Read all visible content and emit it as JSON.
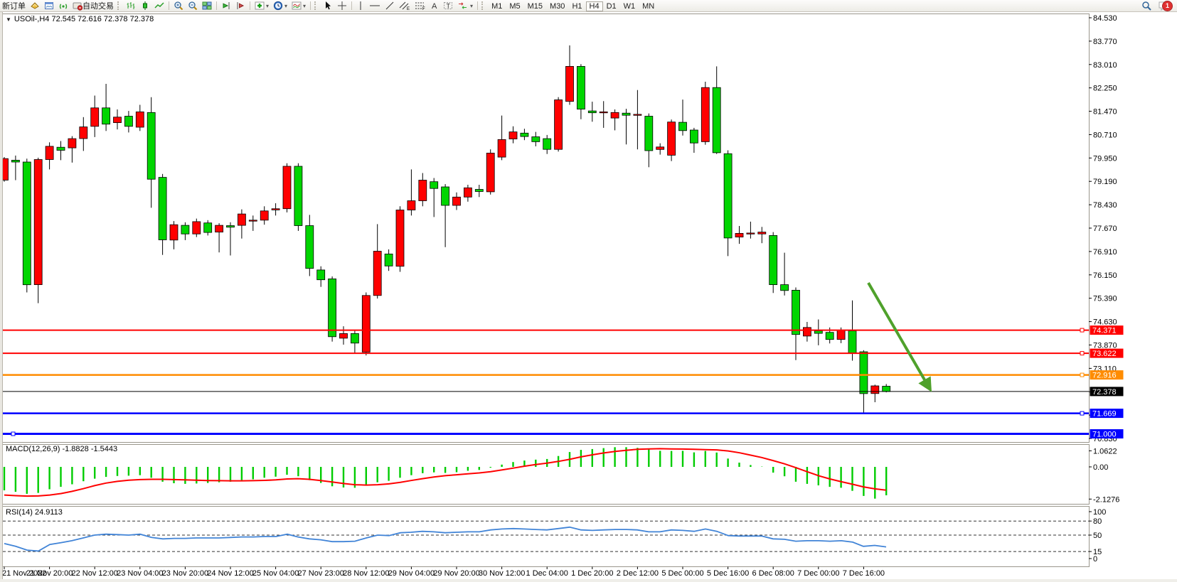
{
  "toolbar": {
    "new_order_label": "新订单",
    "autotrade_label": "自动交易",
    "timeframes": [
      "M1",
      "M5",
      "M15",
      "M30",
      "H1",
      "H4",
      "D1",
      "W1",
      "MN"
    ],
    "active_timeframe": "H4",
    "notification_count": "1"
  },
  "chart": {
    "title": "USOil-,H4 72.545 72.616 72.378 72.378",
    "symbol": "USOil-",
    "period": "H4",
    "open": "72.545",
    "high": "72.616",
    "low": "72.378",
    "close": "72.378"
  },
  "indicators": {
    "macd_label": "MACD(12,26,9) -1.8828 -1.5443",
    "rsi_label": "RSI(14) 24.9113"
  },
  "chart_data": {
    "type": "candlestick",
    "title": "USOil- H4",
    "legend_position": "none",
    "grid": false,
    "price_axis": {
      "ticks": [
        "84.530",
        "83.770",
        "83.010",
        "82.250",
        "81.470",
        "80.710",
        "79.950",
        "79.190",
        "78.430",
        "77.670",
        "76.910",
        "76.150",
        "75.390",
        "74.630",
        "73.870",
        "73.110",
        "72.350",
        "71.590",
        "70.830"
      ],
      "top_tick_value": 84.53,
      "tick_step": 0.76
    },
    "time_labels": [
      "21 Nov 2022",
      "21 Nov 20:00",
      "22 Nov 12:00",
      "23 Nov 04:00",
      "23 Nov 20:00",
      "24 Nov 12:00",
      "25 Nov 04:00",
      "27 Nov 23:00",
      "28 Nov 12:00",
      "29 Nov 04:00",
      "29 Nov 20:00",
      "30 Nov 12:00",
      "1 Dec 04:00",
      "1 Dec 20:00",
      "2 Dec 12:00",
      "5 Dec 00:00",
      "5 Dec 16:00",
      "6 Dec 08:00",
      "7 Dec 00:00",
      "7 Dec 16:00"
    ],
    "time_label_indices": [
      0,
      4,
      8,
      12,
      16,
      20,
      24,
      28,
      32,
      36,
      40,
      44,
      48,
      52,
      56,
      60,
      64,
      68,
      72,
      76
    ],
    "candles": [
      [
        79.25,
        80.0,
        79.2,
        79.95
      ],
      [
        79.9,
        80.05,
        79.25,
        79.84
      ],
      [
        79.84,
        79.95,
        75.6,
        75.85
      ],
      [
        75.85,
        79.98,
        75.25,
        79.92
      ],
      [
        79.92,
        80.48,
        79.6,
        80.35
      ],
      [
        80.32,
        80.52,
        79.9,
        80.22
      ],
      [
        80.3,
        80.68,
        79.82,
        80.6
      ],
      [
        80.6,
        81.3,
        80.2,
        80.98
      ],
      [
        81.0,
        82.0,
        80.65,
        81.6
      ],
      [
        81.6,
        82.38,
        80.85,
        81.07
      ],
      [
        81.12,
        81.55,
        80.9,
        81.3
      ],
      [
        81.33,
        81.5,
        80.8,
        81.0
      ],
      [
        80.97,
        81.7,
        80.85,
        81.47
      ],
      [
        81.45,
        81.95,
        78.35,
        79.28
      ],
      [
        79.34,
        79.45,
        76.82,
        77.31
      ],
      [
        77.3,
        77.92,
        77.0,
        77.8
      ],
      [
        77.78,
        77.88,
        77.3,
        77.5
      ],
      [
        77.5,
        78.0,
        77.4,
        77.9
      ],
      [
        77.86,
        77.95,
        77.45,
        77.55
      ],
      [
        77.56,
        77.85,
        76.9,
        77.78
      ],
      [
        77.77,
        77.88,
        76.8,
        77.72
      ],
      [
        77.78,
        78.3,
        77.35,
        78.15
      ],
      [
        77.92,
        78.1,
        77.6,
        77.95
      ],
      [
        77.95,
        78.4,
        77.8,
        78.25
      ],
      [
        78.28,
        78.5,
        78.1,
        78.32
      ],
      [
        78.32,
        79.8,
        78.2,
        79.7
      ],
      [
        79.7,
        79.8,
        77.6,
        77.77
      ],
      [
        77.77,
        78.12,
        76.13,
        76.38
      ],
      [
        76.33,
        76.45,
        75.78,
        76.01
      ],
      [
        76.04,
        76.12,
        74.0,
        74.16
      ],
      [
        74.11,
        74.5,
        73.9,
        74.26
      ],
      [
        74.26,
        74.35,
        73.6,
        73.95
      ],
      [
        73.66,
        75.6,
        73.55,
        75.5
      ],
      [
        75.5,
        77.82,
        75.4,
        76.94
      ],
      [
        76.85,
        77.0,
        76.3,
        76.46
      ],
      [
        76.45,
        78.4,
        76.27,
        78.28
      ],
      [
        78.28,
        79.6,
        78.1,
        78.58
      ],
      [
        78.58,
        79.48,
        78.4,
        79.25
      ],
      [
        79.2,
        79.32,
        78.05,
        78.98
      ],
      [
        79.03,
        79.12,
        77.07,
        78.43
      ],
      [
        78.43,
        78.85,
        78.28,
        78.7
      ],
      [
        78.7,
        79.1,
        78.55,
        79.0
      ],
      [
        78.95,
        79.1,
        78.7,
        78.88
      ],
      [
        78.87,
        80.25,
        78.78,
        80.13
      ],
      [
        80.0,
        81.35,
        79.9,
        80.57
      ],
      [
        80.59,
        81.0,
        80.45,
        80.82
      ],
      [
        80.78,
        80.92,
        80.55,
        80.67
      ],
      [
        80.66,
        80.82,
        80.35,
        80.5
      ],
      [
        80.6,
        80.72,
        80.1,
        80.25
      ],
      [
        80.25,
        81.95,
        80.18,
        81.86
      ],
      [
        81.81,
        83.63,
        81.7,
        82.95
      ],
      [
        82.95,
        83.02,
        81.23,
        81.56
      ],
      [
        81.5,
        81.8,
        81.15,
        81.44
      ],
      [
        81.45,
        81.82,
        80.95,
        81.47
      ],
      [
        81.27,
        81.55,
        80.87,
        81.45
      ],
      [
        81.43,
        81.57,
        80.41,
        81.36
      ],
      [
        81.38,
        82.18,
        80.25,
        81.39
      ],
      [
        81.33,
        81.42,
        79.67,
        80.21
      ],
      [
        80.25,
        80.45,
        80.08,
        80.33
      ],
      [
        80.06,
        81.22,
        79.87,
        81.14
      ],
      [
        81.13,
        81.87,
        80.7,
        80.86
      ],
      [
        80.88,
        80.95,
        80.14,
        80.46
      ],
      [
        80.5,
        82.45,
        80.4,
        82.26
      ],
      [
        82.26,
        82.95,
        80.1,
        80.14
      ],
      [
        80.11,
        80.22,
        76.78,
        77.37
      ],
      [
        77.4,
        77.76,
        77.18,
        77.52
      ],
      [
        77.52,
        77.9,
        77.35,
        77.53
      ],
      [
        77.5,
        77.73,
        77.2,
        77.56
      ],
      [
        77.45,
        77.56,
        75.58,
        75.85
      ],
      [
        75.85,
        76.89,
        75.5,
        75.66
      ],
      [
        75.67,
        75.76,
        73.4,
        74.23
      ],
      [
        74.18,
        74.64,
        74.0,
        74.46
      ],
      [
        74.35,
        74.72,
        73.88,
        74.27
      ],
      [
        74.3,
        74.46,
        73.94,
        74.07
      ],
      [
        74.07,
        74.46,
        73.95,
        74.37
      ],
      [
        74.35,
        75.34,
        73.38,
        73.63
      ],
      [
        73.67,
        73.72,
        71.68,
        72.31
      ],
      [
        72.31,
        72.6,
        72.03,
        72.56
      ],
      [
        72.55,
        72.62,
        72.35,
        72.38
      ]
    ],
    "hlines": [
      {
        "price": 74.371,
        "label": "74.371",
        "color": "#FF0000",
        "width": 2,
        "handle": "right"
      },
      {
        "price": 73.622,
        "label": "73.622",
        "color": "#FF0000",
        "width": 2,
        "handle": "right"
      },
      {
        "price": 72.916,
        "label": "72.916",
        "color": "#FF8C00",
        "width": 2.5,
        "handle": "right"
      },
      {
        "price": 72.378,
        "label": "72.378",
        "color": "#000000",
        "width": 1,
        "handle": "none"
      },
      {
        "price": 71.669,
        "label": "71.669",
        "color": "#0000FF",
        "width": 2.5,
        "handle": "right"
      },
      {
        "price": 71.0,
        "label": "71.000",
        "color": "#0000FF",
        "width": 3,
        "handle": "left"
      }
    ],
    "arrow": {
      "from_index": 76.4,
      "from_price": 75.9,
      "to_index": 81.7,
      "to_price": 72.55,
      "color": "#4FA12B",
      "width": 4
    },
    "macd": {
      "histogram": [
        -1.55,
        -1.65,
        -1.78,
        -1.72,
        -1.48,
        -1.32,
        -1.15,
        -0.95,
        -0.78,
        -0.66,
        -0.6,
        -0.58,
        -0.55,
        -0.72,
        -0.98,
        -1.08,
        -1.12,
        -1.1,
        -1.06,
        -1.02,
        -0.98,
        -0.88,
        -0.82,
        -0.72,
        -0.65,
        -0.52,
        -0.62,
        -0.88,
        -1.06,
        -1.28,
        -1.36,
        -1.38,
        -1.22,
        -1.02,
        -0.92,
        -0.72,
        -0.55,
        -0.42,
        -0.36,
        -0.4,
        -0.35,
        -0.26,
        -0.2,
        -0.05,
        0.15,
        0.32,
        0.42,
        0.48,
        0.52,
        0.72,
        0.98,
        1.12,
        1.18,
        1.24,
        1.3,
        1.3,
        1.26,
        1.15,
        1.06,
        1.05,
        1.06,
        0.96,
        1.05,
        0.95,
        0.55,
        0.28,
        0.12,
        0.02,
        -0.38,
        -0.62,
        -0.98,
        -1.12,
        -1.22,
        -1.32,
        -1.38,
        -1.58,
        -1.92,
        -2.1,
        -1.88
      ],
      "signal": [
        -1.86,
        -1.9,
        -1.93,
        -1.92,
        -1.86,
        -1.76,
        -1.62,
        -1.44,
        -1.24,
        -1.07,
        -0.96,
        -0.88,
        -0.84,
        -0.82,
        -0.82,
        -0.84,
        -0.86,
        -0.88,
        -0.9,
        -0.91,
        -0.92,
        -0.92,
        -0.91,
        -0.89,
        -0.86,
        -0.8,
        -0.78,
        -0.82,
        -0.9,
        -1.0,
        -1.1,
        -1.18,
        -1.2,
        -1.18,
        -1.12,
        -1.02,
        -0.9,
        -0.78,
        -0.67,
        -0.58,
        -0.52,
        -0.46,
        -0.4,
        -0.32,
        -0.2,
        -0.08,
        0.04,
        0.15,
        0.25,
        0.36,
        0.5,
        0.66,
        0.8,
        0.92,
        1.02,
        1.1,
        1.16,
        1.19,
        1.2,
        1.19,
        1.18,
        1.16,
        1.14,
        1.12,
        1.05,
        0.93,
        0.78,
        0.62,
        0.42,
        0.2,
        -0.05,
        -0.32,
        -0.58,
        -0.8,
        -0.98,
        -1.15,
        -1.32,
        -1.45,
        -1.54
      ],
      "current_main": "-1.8828",
      "current_signal": "-1.5443",
      "scale_labels": [
        [
          "1.0622",
          1.0622
        ],
        [
          "0.00",
          0
        ],
        [
          "-2.1276",
          -2.1276
        ]
      ]
    },
    "rsi": {
      "values": [
        32,
        26,
        18,
        16,
        30,
        34,
        38,
        44,
        50,
        52,
        51,
        50,
        52,
        45,
        42,
        43,
        43,
        44,
        44,
        44,
        45,
        46,
        46,
        47,
        47,
        52,
        46,
        42,
        40,
        36,
        36,
        37,
        44,
        50,
        49,
        55,
        56,
        58,
        57,
        55,
        56,
        57,
        57,
        61,
        63,
        64,
        63,
        62,
        61,
        64,
        67,
        61,
        60,
        61,
        62,
        62,
        61,
        57,
        57,
        61,
        60,
        58,
        63,
        58,
        49,
        48,
        48,
        48,
        42,
        41,
        37,
        38,
        38,
        37,
        38,
        35,
        26,
        28,
        24.9
      ],
      "current": "24.9113",
      "levels": [
        80,
        50,
        15
      ],
      "scale_labels": [
        [
          "100",
          100
        ],
        [
          "80",
          80
        ],
        [
          "50",
          50
        ],
        [
          "15",
          15
        ],
        [
          "0",
          0
        ]
      ]
    },
    "colors": {
      "bull": "#FF0000",
      "bear": "#00D500",
      "outline": "#000000",
      "macd_hist": "#00CC00",
      "macd_signal": "#FF0000",
      "rsi_line": "#4184D7",
      "level_dash": "#333333",
      "panel_border": "#9a968c",
      "axis_text": "#000000"
    }
  }
}
